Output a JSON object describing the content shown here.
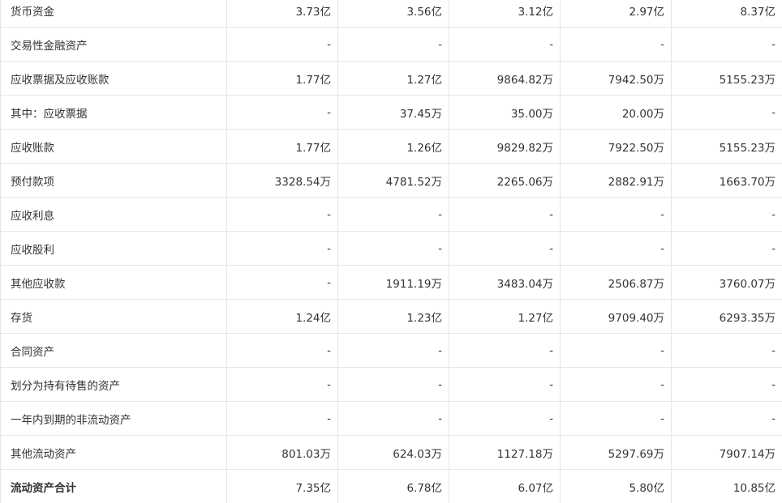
{
  "rows": [
    {
      "label": "货币资金",
      "values": [
        "3.73亿",
        "3.56亿",
        "3.12亿",
        "2.97亿",
        "8.37亿"
      ]
    },
    {
      "label": "交易性金融资产",
      "values": [
        "-",
        "-",
        "-",
        "-",
        "-"
      ]
    },
    {
      "label": "应收票据及应收账款",
      "values": [
        "1.77亿",
        "1.27亿",
        "9864.82万",
        "7942.50万",
        "5155.23万"
      ]
    },
    {
      "label": "其中：应收票据",
      "values": [
        "-",
        "37.45万",
        "35.00万",
        "20.00万",
        "-"
      ]
    },
    {
      "label": "应收账款",
      "values": [
        "1.77亿",
        "1.26亿",
        "9829.82万",
        "7922.50万",
        "5155.23万"
      ]
    },
    {
      "label": "预付款项",
      "values": [
        "3328.54万",
        "4781.52万",
        "2265.06万",
        "2882.91万",
        "1663.70万"
      ]
    },
    {
      "label": "应收利息",
      "values": [
        "-",
        "-",
        "-",
        "-",
        "-"
      ]
    },
    {
      "label": "应收股利",
      "values": [
        "-",
        "-",
        "-",
        "-",
        "-"
      ]
    },
    {
      "label": "其他应收款",
      "values": [
        "-",
        "1911.19万",
        "3483.04万",
        "2506.87万",
        "3760.07万"
      ]
    },
    {
      "label": "存货",
      "values": [
        "1.24亿",
        "1.23亿",
        "1.27亿",
        "9709.40万",
        "6293.35万"
      ]
    },
    {
      "label": "合同资产",
      "values": [
        "-",
        "-",
        "-",
        "-",
        "-"
      ]
    },
    {
      "label": "划分为持有待售的资产",
      "values": [
        "-",
        "-",
        "-",
        "-",
        "-"
      ]
    },
    {
      "label": "一年内到期的非流动资产",
      "values": [
        "-",
        "-",
        "-",
        "-",
        "-"
      ]
    },
    {
      "label": "其他流动资产",
      "values": [
        "801.03万",
        "624.03万",
        "1127.18万",
        "5297.69万",
        "7907.14万"
      ]
    },
    {
      "label": "流动资产合计",
      "values": [
        "7.35亿",
        "6.78亿",
        "6.07亿",
        "5.80亿",
        "10.85亿"
      ]
    }
  ]
}
